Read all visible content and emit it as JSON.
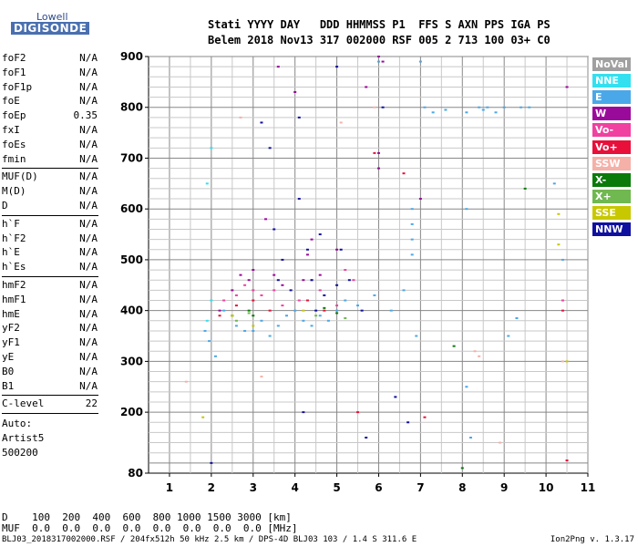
{
  "logo": {
    "top": "Lowell",
    "main": "DIGISONDE"
  },
  "header": {
    "line1": "Stati YYYY DAY   DDD HHMMSS P1  FFS S AXN PPS IGA PS",
    "line2": "Belem 2018 Nov13 317 002000 RSF 005 2 713 100 03+ C0"
  },
  "params": {
    "group1": [
      {
        "name": "foF2",
        "value": "N/A"
      },
      {
        "name": "foF1",
        "value": "N/A"
      },
      {
        "name": "foF1p",
        "value": "N/A"
      },
      {
        "name": "foE",
        "value": "N/A"
      },
      {
        "name": "foEp",
        "value": "0.35"
      },
      {
        "name": "fxI",
        "value": "N/A"
      },
      {
        "name": "foEs",
        "value": "N/A"
      },
      {
        "name": "fmin",
        "value": "N/A"
      }
    ],
    "group2": [
      {
        "name": "MUF(D)",
        "value": "N/A"
      },
      {
        "name": "M(D)",
        "value": "N/A"
      },
      {
        "name": "D",
        "value": "N/A"
      }
    ],
    "group3": [
      {
        "name": "h`F",
        "value": "N/A"
      },
      {
        "name": "h`F2",
        "value": "N/A"
      },
      {
        "name": "h`E",
        "value": "N/A"
      },
      {
        "name": "h`Es",
        "value": "N/A"
      }
    ],
    "group4": [
      {
        "name": "hmF2",
        "value": "N/A"
      },
      {
        "name": "hmF1",
        "value": "N/A"
      },
      {
        "name": "hmE",
        "value": "N/A"
      },
      {
        "name": "yF2",
        "value": "N/A"
      },
      {
        "name": "yF1",
        "value": "N/A"
      },
      {
        "name": "yE",
        "value": "N/A"
      },
      {
        "name": "B0",
        "value": "N/A"
      },
      {
        "name": "B1",
        "value": "N/A"
      }
    ],
    "clevel": {
      "name": "C-level",
      "value": "22"
    },
    "auto": [
      "Auto:",
      "Artist5",
      "500200"
    ]
  },
  "legend": [
    {
      "label": "NoVal",
      "color": "#a0a0a0"
    },
    {
      "label": "NNE",
      "color": "#33e0f0"
    },
    {
      "label": "E",
      "color": "#4aa8e8"
    },
    {
      "label": "W",
      "color": "#9a0a9a"
    },
    {
      "label": "Vo-",
      "color": "#f040a0"
    },
    {
      "label": "Vo+",
      "color": "#e8103a"
    },
    {
      "label": "SSW",
      "color": "#f5b0a8"
    },
    {
      "label": "X-",
      "color": "#0a7a0a"
    },
    {
      "label": "X+",
      "color": "#70b850"
    },
    {
      "label": "SSE",
      "color": "#c8c800"
    },
    {
      "label": "NNW",
      "color": "#1010a0"
    }
  ],
  "footer": {
    "d_row": "D    100  200  400  600  800 1000 1500 3000 [km]",
    "muf_row": "MUF  0.0  0.0  0.0  0.0  0.0  0.0  0.0  0.0 [MHz]",
    "file_line": "BLJ03_2018317002000.RSF / 204fx512h 50 kHz 2.5 km / DPS-4D BLJ03 103 / 1.4 S 311.6 E",
    "version": "Ion2Png v. 1.3.17"
  },
  "chart_data": {
    "type": "scatter",
    "title": "",
    "xlabel": "",
    "ylabel": "",
    "xlim": [
      0.5,
      11
    ],
    "ylim": [
      80,
      900
    ],
    "xticks": [
      1,
      2,
      3,
      4,
      5,
      6,
      7,
      8,
      9,
      10,
      11
    ],
    "yticks": [
      80,
      200,
      300,
      400,
      500,
      600,
      700,
      800,
      900
    ],
    "grid": true,
    "series": [
      {
        "name": "NNE",
        "color": "#33e0f0",
        "points": [
          [
            2.0,
            720
          ],
          [
            1.9,
            650
          ],
          [
            2.0,
            420
          ],
          [
            1.9,
            380
          ]
        ]
      },
      {
        "name": "E",
        "color": "#4aa8e8",
        "points": [
          [
            1.85,
            360
          ],
          [
            1.95,
            340
          ],
          [
            2.1,
            310
          ],
          [
            2.3,
            400
          ],
          [
            2.6,
            370
          ],
          [
            2.8,
            360
          ],
          [
            3.0,
            360
          ],
          [
            3.2,
            380
          ],
          [
            3.4,
            350
          ],
          [
            3.6,
            370
          ],
          [
            3.8,
            390
          ],
          [
            4.0,
            400
          ],
          [
            4.2,
            380
          ],
          [
            4.4,
            370
          ],
          [
            4.6,
            390
          ],
          [
            4.8,
            380
          ],
          [
            5.0,
            400
          ],
          [
            5.2,
            420
          ],
          [
            5.5,
            410
          ],
          [
            5.9,
            430
          ],
          [
            6.0,
            890
          ],
          [
            6.3,
            400
          ],
          [
            6.6,
            440
          ],
          [
            6.8,
            510
          ],
          [
            6.8,
            540
          ],
          [
            6.8,
            570
          ],
          [
            6.8,
            600
          ],
          [
            6.9,
            350
          ],
          [
            7.0,
            890
          ],
          [
            7.1,
            800
          ],
          [
            7.3,
            790
          ],
          [
            7.6,
            795
          ],
          [
            8.1,
            790
          ],
          [
            8.1,
            600
          ],
          [
            8.1,
            250
          ],
          [
            8.2,
            150
          ],
          [
            8.4,
            800
          ],
          [
            8.5,
            795
          ],
          [
            8.6,
            800
          ],
          [
            8.8,
            790
          ],
          [
            9.0,
            800
          ],
          [
            9.1,
            350
          ],
          [
            9.3,
            385
          ],
          [
            9.4,
            800
          ],
          [
            9.6,
            800
          ],
          [
            10.2,
            650
          ],
          [
            10.4,
            500
          ]
        ]
      },
      {
        "name": "W",
        "color": "#9a0a9a",
        "points": [
          [
            2.2,
            400
          ],
          [
            2.5,
            440
          ],
          [
            2.7,
            470
          ],
          [
            2.9,
            460
          ],
          [
            3.0,
            480
          ],
          [
            3.3,
            580
          ],
          [
            3.5,
            470
          ],
          [
            3.6,
            880
          ],
          [
            3.7,
            450
          ],
          [
            4.0,
            830
          ],
          [
            4.2,
            460
          ],
          [
            4.3,
            510
          ],
          [
            4.4,
            540
          ],
          [
            4.6,
            470
          ],
          [
            5.0,
            520
          ],
          [
            5.7,
            840
          ],
          [
            6.0,
            710
          ],
          [
            6.0,
            680
          ],
          [
            6.0,
            900
          ],
          [
            6.1,
            890
          ],
          [
            7.0,
            620
          ],
          [
            10.5,
            840
          ]
        ]
      },
      {
        "name": "Vo-",
        "color": "#f040a0",
        "points": [
          [
            2.3,
            420
          ],
          [
            2.6,
            430
          ],
          [
            2.8,
            450
          ],
          [
            3.0,
            440
          ],
          [
            3.2,
            430
          ],
          [
            3.5,
            440
          ],
          [
            3.7,
            410
          ],
          [
            4.1,
            420
          ],
          [
            4.4,
            460
          ],
          [
            4.6,
            440
          ],
          [
            5.0,
            410
          ],
          [
            5.2,
            480
          ],
          [
            5.4,
            460
          ],
          [
            10.4,
            420
          ]
        ]
      },
      {
        "name": "Vo+",
        "color": "#e8103a",
        "points": [
          [
            2.2,
            390
          ],
          [
            2.6,
            410
          ],
          [
            3.0,
            420
          ],
          [
            3.4,
            400
          ],
          [
            4.3,
            420
          ],
          [
            4.7,
            400
          ],
          [
            5.5,
            200
          ],
          [
            5.9,
            710
          ],
          [
            6.6,
            670
          ],
          [
            7.1,
            190
          ],
          [
            10.4,
            400
          ],
          [
            10.5,
            105
          ]
        ]
      },
      {
        "name": "SSW",
        "color": "#f5b0a8",
        "points": [
          [
            1.4,
            260
          ],
          [
            2.7,
            780
          ],
          [
            3.2,
            270
          ],
          [
            5.1,
            770
          ],
          [
            5.9,
            800
          ],
          [
            8.3,
            320
          ],
          [
            8.4,
            310
          ],
          [
            8.9,
            140
          ],
          [
            10.4,
            300
          ]
        ]
      },
      {
        "name": "X-",
        "color": "#0a7a0a",
        "points": [
          [
            2.5,
            390
          ],
          [
            2.9,
            400
          ],
          [
            3.0,
            390
          ],
          [
            4.7,
            405
          ],
          [
            5.0,
            395
          ],
          [
            7.8,
            330
          ],
          [
            8.0,
            90
          ],
          [
            9.5,
            640
          ]
        ]
      },
      {
        "name": "X+",
        "color": "#70b850",
        "points": [
          [
            2.6,
            380
          ],
          [
            2.9,
            395
          ],
          [
            4.5,
            390
          ],
          [
            5.2,
            385
          ]
        ]
      },
      {
        "name": "SSE",
        "color": "#c8c800",
        "points": [
          [
            1.8,
            190
          ],
          [
            2.5,
            390
          ],
          [
            3.0,
            370
          ],
          [
            4.2,
            400
          ],
          [
            10.3,
            590
          ],
          [
            10.3,
            530
          ],
          [
            10.5,
            300
          ]
        ]
      },
      {
        "name": "NNW",
        "color": "#1010a0",
        "points": [
          [
            2.0,
            100
          ],
          [
            3.2,
            770
          ],
          [
            3.4,
            720
          ],
          [
            3.5,
            560
          ],
          [
            3.6,
            460
          ],
          [
            3.7,
            500
          ],
          [
            3.9,
            440
          ],
          [
            4.1,
            780
          ],
          [
            4.1,
            620
          ],
          [
            4.2,
            200
          ],
          [
            4.3,
            520
          ],
          [
            4.4,
            460
          ],
          [
            4.5,
            400
          ],
          [
            4.6,
            550
          ],
          [
            4.7,
            430
          ],
          [
            5.0,
            880
          ],
          [
            5.0,
            450
          ],
          [
            5.1,
            520
          ],
          [
            5.3,
            460
          ],
          [
            5.6,
            400
          ],
          [
            5.7,
            150
          ],
          [
            6.1,
            800
          ],
          [
            6.4,
            230
          ],
          [
            6.7,
            180
          ]
        ]
      }
    ]
  }
}
